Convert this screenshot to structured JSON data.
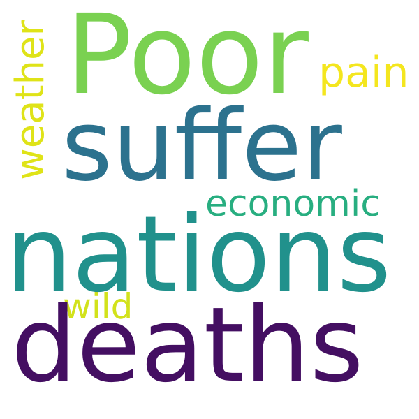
{
  "background_color": "#ffffff",
  "words": [
    {
      "text": "Poor",
      "color": "#7ad151"
    },
    {
      "text": "suffer",
      "color": "#2c728e"
    },
    {
      "text": "nations",
      "color": "#21918c"
    },
    {
      "text": "deaths",
      "color": "#440f62"
    },
    {
      "text": "pain",
      "color": "#f4e61e"
    },
    {
      "text": "economic",
      "color": "#28ae80"
    },
    {
      "text": "wild",
      "color": "#d2e21b"
    },
    {
      "text": "weather",
      "color": "#dfe318"
    }
  ]
}
